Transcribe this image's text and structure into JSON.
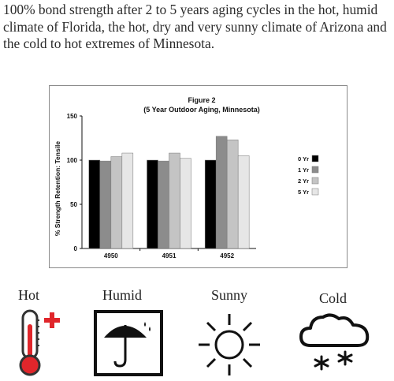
{
  "intro_text": "100% bond strength after 2 to 5 years aging cycles in the hot, humid climate of Florida, the hot, dry and very sunny climate of Arizona and the cold to hot extremes of Minnesota.",
  "chart_data": {
    "type": "bar",
    "title": "Figure 2",
    "subtitle": "(5 Year Outdoor Aging, Minnesota)",
    "ylabel": "% Strength Retention: Tensile",
    "xlabel": "",
    "ylim": [
      0,
      150
    ],
    "yticks": [
      0,
      50,
      100,
      150
    ],
    "categories": [
      "4950",
      "4951",
      "4952"
    ],
    "series": [
      {
        "name": "0 Yr",
        "color": "#000000",
        "values": [
          100,
          100,
          100
        ]
      },
      {
        "name": "1 Yr",
        "color": "#8c8c8c",
        "values": [
          99,
          99,
          127
        ]
      },
      {
        "name": "2 Yr",
        "color": "#c4c4c4",
        "values": [
          104,
          108,
          123
        ]
      },
      {
        "name": "5 Yr",
        "color": "#e6e6e6",
        "values": [
          108,
          102,
          105
        ]
      }
    ],
    "grid": false,
    "legend_position": "right"
  },
  "icons": [
    {
      "label": "Hot",
      "icon": "thermometer-plus-icon",
      "color": "#e0262b"
    },
    {
      "label": "Humid",
      "icon": "umbrella-droplets-icon",
      "color": "#1a1a1a"
    },
    {
      "label": "Sunny",
      "icon": "sun-icon",
      "color": "#1a1a1a"
    },
    {
      "label": "Cold",
      "icon": "cloud-snow-icon",
      "color": "#1a1a1a"
    }
  ]
}
